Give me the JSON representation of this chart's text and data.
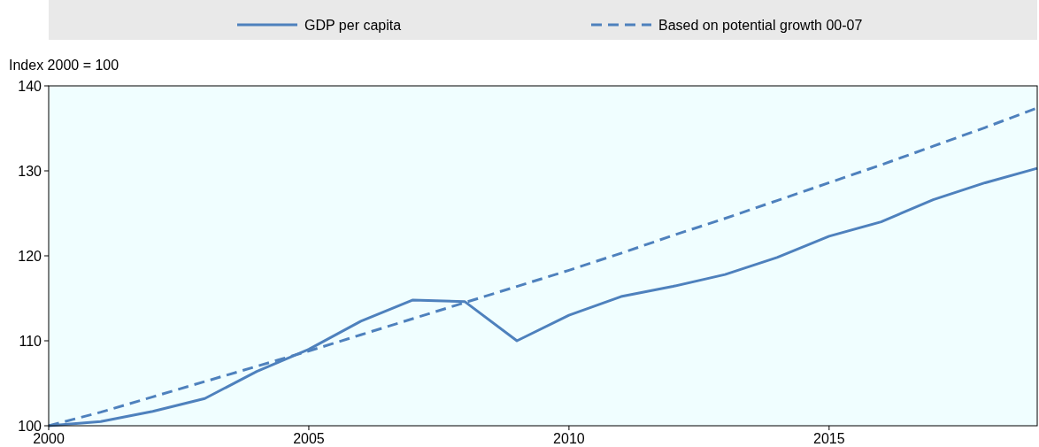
{
  "chart_data": {
    "type": "line",
    "ylabel": "Index 2000 = 100",
    "x": [
      2000,
      2001,
      2002,
      2003,
      2004,
      2005,
      2006,
      2007,
      2008,
      2009,
      2010,
      2011,
      2012,
      2013,
      2014,
      2015,
      2016,
      2017,
      2018,
      2019
    ],
    "series": [
      {
        "name": "GDP per capita",
        "color": "#4e81bd",
        "line_style": "solid",
        "values": [
          100,
          100.5,
          101.7,
          103.2,
          106.4,
          109,
          112.3,
          114.8,
          114.6,
          110,
          113,
          115.2,
          116.4,
          117.8,
          119.8,
          122.3,
          124,
          126.6,
          128.6,
          130.3
        ]
      },
      {
        "name": "Based on potential growth 00-07",
        "color": "#4e81bd",
        "line_style": "dashed",
        "values": [
          100,
          101.6,
          103.4,
          105.2,
          107,
          108.8,
          110.7,
          112.6,
          114.5,
          116.4,
          118.3,
          120.3,
          122.4,
          124.4,
          126.5,
          128.6,
          130.7,
          132.9,
          135.1,
          137.4
        ]
      }
    ],
    "xlim": [
      2000,
      2019
    ],
    "xticks": [
      2000,
      2005,
      2010,
      2015
    ],
    "ylim": [
      100,
      140
    ],
    "yticks": [
      100,
      110,
      120,
      130,
      140
    ],
    "grid": false,
    "legend": "top",
    "marker": "none"
  }
}
